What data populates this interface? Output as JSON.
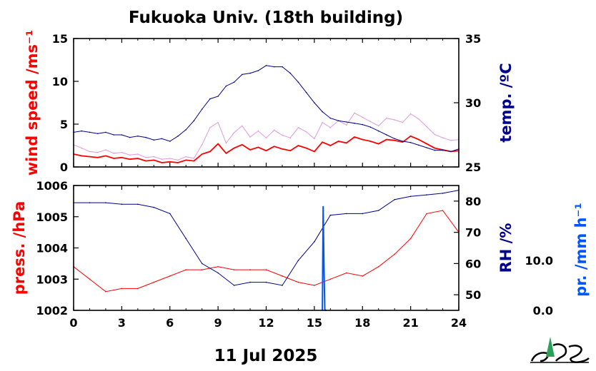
{
  "title": "Fukuoka Univ. (18th building)",
  "date_label": "11 Jul 2025",
  "colors": {
    "wind": "#ff0000",
    "gust": "#dd99dd",
    "temp": "#00008b",
    "press": "#ff0000",
    "rh": "#00008b",
    "rain": "#0055ff"
  },
  "logo_icon": "fukuoka-univ-logo",
  "chart_data": [
    {
      "type": "line",
      "panel": "top",
      "x_ticks": [
        0,
        3,
        6,
        9,
        12,
        15,
        18,
        21,
        24
      ],
      "xlim": [
        0,
        24
      ],
      "left_axis": {
        "label": "wind speed /ms⁻¹",
        "lim": [
          0,
          15
        ],
        "ticks": [
          0,
          5,
          10,
          15
        ]
      },
      "right_axis": {
        "label": "temp. /ºC",
        "lim": [
          25,
          35
        ],
        "ticks": [
          25,
          30,
          35
        ]
      },
      "series": [
        {
          "axis": "left",
          "role": "wind",
          "x": [
            0,
            0.5,
            1,
            1.5,
            2,
            2.5,
            3,
            3.5,
            4,
            4.5,
            5,
            5.5,
            6,
            6.5,
            7,
            7.5,
            8,
            8.5,
            9,
            9.5,
            10,
            10.5,
            11,
            11.5,
            12,
            12.5,
            13,
            13.5,
            14,
            14.5,
            15,
            15.5,
            16,
            16.5,
            17,
            17.5,
            18,
            18.5,
            19,
            19.5,
            20,
            20.5,
            21,
            21.5,
            22,
            22.5,
            23,
            23.5,
            24
          ],
          "y": [
            1.5,
            1.3,
            1.2,
            1.1,
            1.3,
            1.0,
            1.1,
            0.9,
            1.0,
            0.7,
            0.8,
            0.5,
            0.6,
            0.5,
            0.8,
            0.7,
            1.5,
            1.8,
            2.7,
            1.6,
            2.2,
            2.6,
            2.0,
            2.3,
            1.9,
            2.4,
            2.1,
            1.9,
            2.5,
            2.2,
            1.8,
            2.9,
            2.5,
            3.0,
            2.8,
            3.5,
            3.2,
            3.0,
            2.7,
            3.2,
            3.1,
            2.9,
            3.6,
            3.2,
            2.7,
            2.2,
            2.0,
            1.8,
            1.9
          ]
        },
        {
          "axis": "left",
          "role": "gust",
          "x": [
            0,
            0.5,
            1,
            1.5,
            2,
            2.5,
            3,
            3.5,
            4,
            4.5,
            5,
            5.5,
            6,
            6.5,
            7,
            7.5,
            8,
            8.5,
            9,
            9.5,
            10,
            10.5,
            11,
            11.5,
            12,
            12.5,
            13,
            13.5,
            14,
            14.5,
            15,
            15.5,
            16,
            16.5,
            17,
            17.5,
            18,
            18.5,
            19,
            19.5,
            20,
            20.5,
            21,
            21.5,
            22,
            22.5,
            23,
            23.5,
            24
          ],
          "y": [
            2.6,
            2.2,
            1.8,
            1.7,
            2.0,
            1.6,
            1.7,
            1.4,
            1.5,
            1.1,
            1.2,
            0.9,
            1.0,
            0.8,
            1.2,
            1.0,
            2.6,
            4.6,
            5.2,
            2.8,
            4.0,
            4.8,
            3.5,
            4.2,
            3.4,
            4.3,
            3.7,
            3.4,
            4.6,
            4.1,
            3.3,
            5.2,
            4.6,
            5.4,
            4.9,
            6.3,
            5.8,
            5.3,
            4.8,
            5.7,
            5.5,
            5.2,
            6.2,
            5.6,
            4.7,
            3.8,
            3.4,
            3.1,
            3.2
          ]
        },
        {
          "axis": "right",
          "role": "temp",
          "x": [
            0,
            0.5,
            1,
            1.5,
            2,
            2.5,
            3,
            3.5,
            4,
            4.5,
            5,
            5.5,
            6,
            6.5,
            7,
            7.5,
            8,
            8.5,
            9,
            9.5,
            10,
            10.5,
            11,
            11.5,
            12,
            12.5,
            13,
            13.5,
            14,
            14.5,
            15,
            15.5,
            16,
            16.5,
            17,
            17.5,
            18,
            18.5,
            19,
            19.5,
            20,
            20.5,
            21,
            21.5,
            22,
            22.5,
            23,
            23.5,
            24
          ],
          "y": [
            27.7,
            27.8,
            27.7,
            27.6,
            27.7,
            27.5,
            27.5,
            27.3,
            27.4,
            27.3,
            27.1,
            27.2,
            27.0,
            27.4,
            27.9,
            28.6,
            29.5,
            30.3,
            30.5,
            31.3,
            31.6,
            32.2,
            32.3,
            32.5,
            32.9,
            32.8,
            32.8,
            32.3,
            31.6,
            30.8,
            30.0,
            29.3,
            28.8,
            28.6,
            28.5,
            28.4,
            28.3,
            28.1,
            27.8,
            27.5,
            27.2,
            27.0,
            26.9,
            26.7,
            26.5,
            26.3,
            26.3,
            26.2,
            26.4
          ]
        }
      ]
    },
    {
      "type": "line",
      "panel": "bottom",
      "x_ticks": [
        0,
        3,
        6,
        9,
        12,
        15,
        18,
        21,
        24
      ],
      "xlim": [
        0,
        24
      ],
      "left_axis": {
        "label": "press. /hPa",
        "lim": [
          1002,
          1006
        ],
        "ticks": [
          1002,
          1003,
          1004,
          1005,
          1006
        ]
      },
      "right_axis": {
        "label": "RH /%",
        "lim": [
          45,
          85
        ],
        "ticks": [
          50,
          60,
          70,
          80
        ]
      },
      "rain_axis": {
        "label": "pr. /mm h⁻¹",
        "lim": [
          0,
          25
        ],
        "ticks": [
          "0.0",
          "10.0"
        ]
      },
      "series": [
        {
          "axis": "left",
          "role": "press",
          "x": [
            0,
            1,
            2,
            3,
            4,
            5,
            6,
            7,
            8,
            9,
            10,
            11,
            12,
            13,
            14,
            15,
            16,
            17,
            18,
            19,
            20,
            21,
            22,
            23,
            24
          ],
          "y": [
            1003.4,
            1003.0,
            1002.6,
            1002.7,
            1002.7,
            1002.9,
            1003.1,
            1003.3,
            1003.3,
            1003.4,
            1003.3,
            1003.3,
            1003.3,
            1003.1,
            1002.9,
            1002.8,
            1003.0,
            1003.2,
            1003.1,
            1003.4,
            1003.8,
            1004.3,
            1005.1,
            1005.2,
            1004.5
          ]
        },
        {
          "axis": "right",
          "role": "rh",
          "x": [
            0,
            1,
            2,
            3,
            4,
            5,
            6,
            7,
            8,
            9,
            10,
            11,
            12,
            13,
            14,
            15,
            16,
            17,
            18,
            19,
            20,
            21,
            22,
            23,
            24
          ],
          "y": [
            79.5,
            79.5,
            79.5,
            79.0,
            79.0,
            78.0,
            76.0,
            68.0,
            60.0,
            57.0,
            53.0,
            54.0,
            54.0,
            53.0,
            61.0,
            67.0,
            75.5,
            76.0,
            76.0,
            77.0,
            80.5,
            81.5,
            82.0,
            82.5,
            83.5
          ]
        },
        {
          "axis": "rain",
          "role": "rain",
          "x": [
            15.5,
            15.55,
            15.6,
            15.65,
            15.7,
            15.75
          ],
          "y": [
            0,
            20.8,
            8.5,
            0.2,
            0,
            0
          ]
        }
      ]
    }
  ]
}
